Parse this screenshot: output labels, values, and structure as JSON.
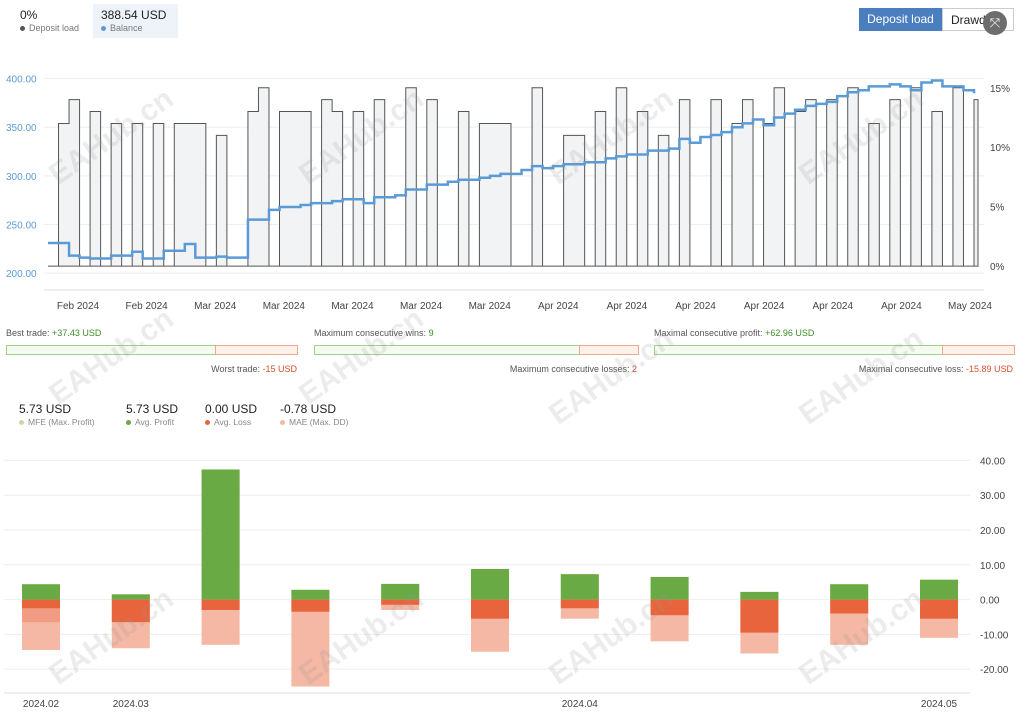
{
  "header": {
    "deposit_load": {
      "value": "0%",
      "label": "Deposit load",
      "color": "#555555"
    },
    "balance": {
      "value": "388.54 USD",
      "label": "Balance",
      "color": "#5b9bd5"
    },
    "toggle_active": "Deposit load",
    "toggle_inactive": "Drawd"
  },
  "stats": {
    "best_trade_label": "Best trade:",
    "best_trade_value": "+37.43 USD",
    "worst_trade_label": "Worst trade:",
    "worst_trade_value": "-15 USD",
    "max_wins_label": "Maximum consecutive wins:",
    "max_wins_value": "9",
    "max_losses_label": "Maximum consecutive losses:",
    "max_losses_value": "2",
    "max_profit_label": "Maximal consecutive profit:",
    "max_profit_value": "+62.96 USD",
    "max_loss_label": "Maximal consecutive loss:",
    "max_loss_value": "-15.89 USD"
  },
  "mfe_legend": [
    {
      "value": "5.73 USD",
      "label": "MFE (Max. Profit)",
      "color": "#c8d8a8"
    },
    {
      "value": "5.73 USD",
      "label": "Avg. Profit",
      "color": "#6aaa45"
    },
    {
      "value": "0.00 USD",
      "label": "Avg. Loss",
      "color": "#e8643c"
    },
    {
      "value": "-0.78 USD",
      "label": "MAE (Max. DD)",
      "color": "#f4b8a4"
    }
  ],
  "watermark": "EAHub.cn",
  "chart_data": [
    {
      "type": "line",
      "series": [
        {
          "name": "Balance",
          "color": "#5b9bd5",
          "values": [
            231,
            231,
            218,
            216,
            215,
            215,
            218,
            218,
            222,
            215,
            215,
            223,
            223,
            230,
            216,
            216,
            217,
            216,
            216,
            255,
            255,
            265,
            268,
            268,
            270,
            272,
            272,
            274,
            276,
            276,
            272,
            278,
            278,
            280,
            286,
            286,
            291,
            291,
            294,
            296,
            296,
            298,
            300,
            302,
            302,
            306,
            310,
            308,
            310,
            312,
            312,
            314,
            314,
            318,
            320,
            322,
            322,
            326,
            326,
            328,
            338,
            334,
            340,
            342,
            345,
            350,
            354,
            358,
            352,
            360,
            364,
            368,
            372,
            374,
            376,
            382,
            386,
            388,
            392,
            392,
            394,
            392,
            388,
            396,
            398,
            392,
            392,
            388,
            385
          ]
        },
        {
          "name": "Deposit load",
          "color": "#555555",
          "values": [
            0,
            12,
            14,
            0,
            13,
            0,
            12,
            0,
            12,
            0,
            12,
            0,
            12,
            12,
            12,
            0,
            11,
            0,
            0,
            13,
            15,
            0,
            13,
            13,
            13,
            0,
            14,
            13,
            0,
            13,
            0,
            14,
            0,
            0,
            15,
            0,
            14,
            0,
            0,
            13,
            0,
            12,
            12,
            12,
            0,
            0,
            15,
            0,
            0,
            11,
            11,
            0,
            13,
            0,
            15,
            0,
            13,
            0,
            11,
            0,
            14,
            0,
            0,
            14,
            0,
            12,
            14,
            0,
            12,
            15,
            0,
            13,
            14,
            0,
            14,
            0,
            15,
            0,
            12,
            0,
            14,
            0,
            15,
            0,
            13,
            0,
            15,
            0,
            14
          ]
        }
      ],
      "x_tick_labels": [
        "Feb 2024",
        "Feb 2024",
        "Mar 2024",
        "Mar 2024",
        "Mar 2024",
        "Mar 2024",
        "Mar 2024",
        "Apr 2024",
        "Apr 2024",
        "Apr 2024",
        "Apr 2024",
        "Apr 2024",
        "Apr 2024",
        "May 2024"
      ],
      "y_left_ticks": [
        "200.00",
        "250.00",
        "300.00",
        "350.00",
        "400.00"
      ],
      "y_left_range": [
        195,
        415
      ],
      "y_right_ticks": [
        "0%",
        "5%",
        "10%",
        "15%"
      ],
      "y_right_range": [
        -1,
        17
      ],
      "grid": true
    },
    {
      "type": "bar",
      "categories": [
        "1",
        "2",
        "3",
        "4",
        "5",
        "6",
        "7",
        "8",
        "9",
        "10",
        "11"
      ],
      "x_tick_labels": [
        {
          "label": "2024.02",
          "at": 0
        },
        {
          "label": "2024.03",
          "at": 1
        },
        {
          "label": "2024.04",
          "at": 6
        },
        {
          "label": "2024.05",
          "at": 10
        }
      ],
      "series": [
        {
          "name": "MFE (Max. Profit)",
          "color": "#c8d8a8",
          "values": [
            4.4,
            1.5,
            37.4,
            2.8,
            4.5,
            8.8,
            7.3,
            6.5,
            2.2,
            4.4,
            5.7
          ]
        },
        {
          "name": "Avg. Profit",
          "color": "#6aaa45",
          "values": [
            4.4,
            1.5,
            37.4,
            2.8,
            4.5,
            8.8,
            7.3,
            6.5,
            2.2,
            4.4,
            5.7
          ]
        },
        {
          "name": "Avg. Loss",
          "color": "#e8643c",
          "values": [
            -2.5,
            -6.5,
            -3,
            -3.5,
            -1.5,
            -5.5,
            -2.5,
            -4.5,
            -9.5,
            -4,
            -5.5
          ]
        },
        {
          "name": "MAE (Max. DD)",
          "color": "#f4b8a4",
          "values": [
            -14.5,
            -14,
            -13,
            -25,
            -3,
            -15,
            -5.5,
            -12,
            -15.5,
            -13,
            -11
          ]
        }
      ],
      "extra_band": [
        -6.5,
        0,
        0,
        0,
        0,
        0,
        0,
        0,
        0,
        0,
        0
      ],
      "y_ticks": [
        "40.00",
        "30.00",
        "20.00",
        "10.00",
        "0.00",
        "-10.00",
        "-20.00"
      ],
      "ylim": [
        -26,
        43
      ],
      "grid": true
    }
  ]
}
